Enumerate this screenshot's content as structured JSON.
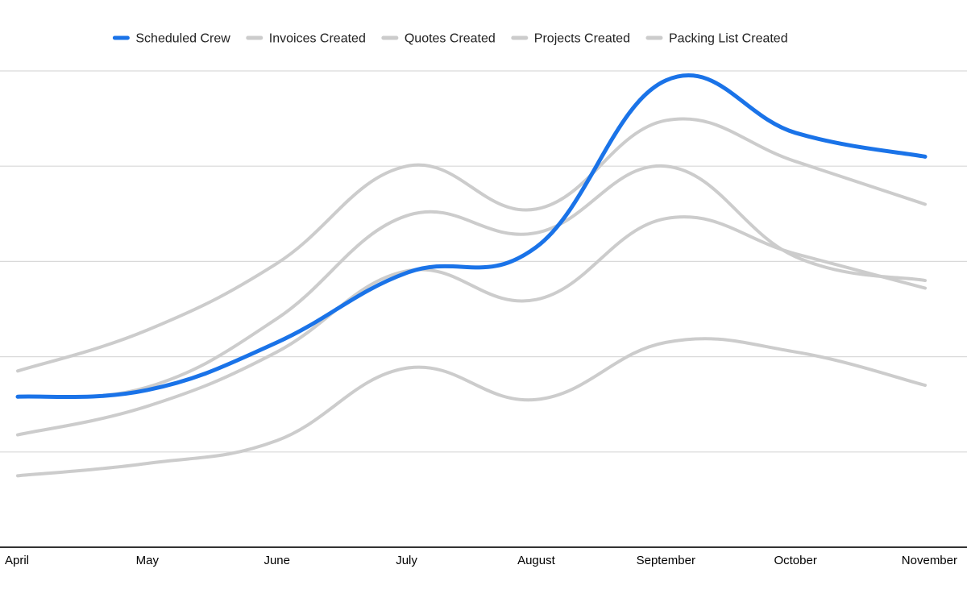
{
  "chart_data": {
    "type": "line",
    "smooth": true,
    "categories": [
      "April",
      "May",
      "June",
      "July",
      "August",
      "September",
      "October",
      "November"
    ],
    "ylim": [
      0,
      5
    ],
    "grid": true,
    "y_tick_labels_visible": false,
    "legend_position": "top",
    "series": [
      {
        "name": "Scheduled Crew",
        "color": "#1a73e8",
        "values": [
          1.58,
          1.65,
          2.15,
          2.88,
          3.15,
          4.9,
          4.35,
          4.1
        ]
      },
      {
        "name": "Invoices Created",
        "color": "#cccccc",
        "values": [
          1.85,
          2.28,
          2.98,
          4.0,
          3.55,
          4.48,
          4.05,
          3.6
        ]
      },
      {
        "name": "Quotes Created",
        "color": "#cccccc",
        "values": [
          1.58,
          1.68,
          2.4,
          3.48,
          3.3,
          4.0,
          3.05,
          2.8
        ]
      },
      {
        "name": "Projects Created",
        "color": "#cccccc",
        "values": [
          1.18,
          1.48,
          2.05,
          2.9,
          2.6,
          3.45,
          3.08,
          2.72
        ]
      },
      {
        "name": "Packing List Created",
        "color": "#cccccc",
        "values": [
          0.75,
          0.88,
          1.12,
          1.88,
          1.55,
          2.15,
          2.05,
          1.7
        ]
      }
    ]
  }
}
